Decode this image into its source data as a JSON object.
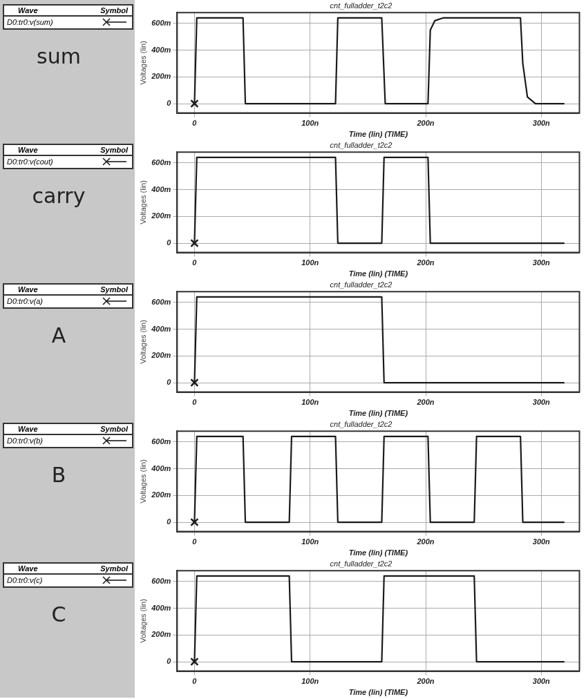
{
  "chart_data": [
    {
      "type": "line",
      "title": "cnt_fulladder_t2c2",
      "xlabel": "Time (lin) (TIME)",
      "ylabel": "Voltages (lin)",
      "legend_title": "Wave",
      "annotations": [
        "Symbol",
        "sum"
      ],
      "legend": "left",
      "grid": true,
      "line_style": "solid",
      "xlim": [
        -15,
        333
      ],
      "xticks": [
        {
          "value": 0,
          "label": "0"
        },
        {
          "value": 100,
          "label": "100n"
        },
        {
          "value": 200,
          "label": "200n"
        },
        {
          "value": 300,
          "label": "300n"
        }
      ],
      "ylim": [
        -70,
        680
      ],
      "yticks": [
        {
          "value": 0,
          "label": "0"
        },
        {
          "value": 200,
          "label": "200m"
        },
        {
          "value": 400,
          "label": "400m"
        },
        {
          "value": 600,
          "label": "600m"
        }
      ],
      "series": [
        {
          "name": "D0:tr0:v(sum)",
          "color": "#1a1a1a",
          "marker": "none",
          "x": [
            0,
            2,
            42,
            44,
            122,
            124,
            162,
            165,
            202,
            204,
            208,
            215,
            282,
            284,
            288,
            295,
            320
          ],
          "values": [
            0,
            640,
            640,
            0,
            0,
            640,
            640,
            0,
            0,
            550,
            620,
            640,
            640,
            300,
            50,
            0,
            0
          ]
        },
        {
          "type": "scatter",
          "color": "#1a1a1a",
          "marker": "cross",
          "x": [
            0
          ],
          "values": [
            0
          ]
        }
      ]
    },
    {
      "type": "line",
      "title": "cnt_fulladder_t2c2",
      "xlabel": "Time (lin) (TIME)",
      "ylabel": "Voltages (lin)",
      "legend_title": "Wave",
      "annotations": [
        "Symbol",
        "carry"
      ],
      "legend": "left",
      "grid": true,
      "line_style": "solid",
      "xlim": [
        -15,
        333
      ],
      "xticks": [
        {
          "value": 0,
          "label": "0"
        },
        {
          "value": 100,
          "label": "100n"
        },
        {
          "value": 200,
          "label": "200n"
        },
        {
          "value": 300,
          "label": "300n"
        }
      ],
      "ylim": [
        -70,
        680
      ],
      "yticks": [
        {
          "value": 0,
          "label": "0"
        },
        {
          "value": 200,
          "label": "200m"
        },
        {
          "value": 400,
          "label": "400m"
        },
        {
          "value": 600,
          "label": "600m"
        }
      ],
      "series": [
        {
          "name": "D0:tr0:v(cout)",
          "color": "#1a1a1a",
          "marker": "none",
          "x": [
            0,
            2,
            122,
            124,
            162,
            164,
            202,
            204,
            320
          ],
          "values": [
            0,
            640,
            640,
            0,
            0,
            640,
            640,
            0,
            0
          ]
        },
        {
          "type": "scatter",
          "color": "#1a1a1a",
          "marker": "cross",
          "x": [
            0
          ],
          "values": [
            0
          ]
        }
      ]
    },
    {
      "type": "line",
      "title": "cnt_fulladder_t2c2",
      "xlabel": "Time (lin) (TIME)",
      "ylabel": "Voltages (lin)",
      "legend_title": "Wave",
      "annotations": [
        "Symbol",
        "A"
      ],
      "legend": "left",
      "grid": true,
      "line_style": "solid",
      "xlim": [
        -15,
        333
      ],
      "xticks": [
        {
          "value": 0,
          "label": "0"
        },
        {
          "value": 100,
          "label": "100n"
        },
        {
          "value": 200,
          "label": "200n"
        },
        {
          "value": 300,
          "label": "300n"
        }
      ],
      "ylim": [
        -70,
        680
      ],
      "yticks": [
        {
          "value": 0,
          "label": "0"
        },
        {
          "value": 200,
          "label": "200m"
        },
        {
          "value": 400,
          "label": "400m"
        },
        {
          "value": 600,
          "label": "600m"
        }
      ],
      "series": [
        {
          "name": "D0:tr0:v(a)",
          "color": "#1a1a1a",
          "marker": "none",
          "x": [
            0,
            2,
            162,
            164,
            320
          ],
          "values": [
            0,
            640,
            640,
            0,
            0
          ]
        },
        {
          "type": "scatter",
          "color": "#1a1a1a",
          "marker": "cross",
          "x": [
            0
          ],
          "values": [
            0
          ]
        }
      ]
    },
    {
      "type": "line",
      "title": "cnt_fulladder_t2c2",
      "xlabel": "Time (lin) (TIME)",
      "ylabel": "Voltages (lin)",
      "legend_title": "Wave",
      "annotations": [
        "Symbol",
        "B"
      ],
      "legend": "left",
      "grid": true,
      "line_style": "solid",
      "xlim": [
        -15,
        333
      ],
      "xticks": [
        {
          "value": 0,
          "label": "0"
        },
        {
          "value": 100,
          "label": "100n"
        },
        {
          "value": 200,
          "label": "200n"
        },
        {
          "value": 300,
          "label": "300n"
        }
      ],
      "ylim": [
        -70,
        680
      ],
      "yticks": [
        {
          "value": 0,
          "label": "0"
        },
        {
          "value": 200,
          "label": "200m"
        },
        {
          "value": 400,
          "label": "400m"
        },
        {
          "value": 600,
          "label": "600m"
        }
      ],
      "series": [
        {
          "name": "D0:tr0:v(b)",
          "color": "#1a1a1a",
          "marker": "none",
          "x": [
            0,
            2,
            42,
            44,
            82,
            84,
            122,
            124,
            162,
            164,
            202,
            204,
            242,
            244,
            282,
            284,
            320
          ],
          "values": [
            0,
            640,
            640,
            0,
            0,
            640,
            640,
            0,
            0,
            640,
            640,
            0,
            0,
            640,
            640,
            0,
            0
          ]
        },
        {
          "type": "scatter",
          "color": "#1a1a1a",
          "marker": "cross",
          "x": [
            0
          ],
          "values": [
            0
          ]
        }
      ]
    },
    {
      "type": "line",
      "title": "cnt_fulladder_t2c2",
      "xlabel": "Time (lin) (TIME)",
      "ylabel": "Voltages (lin)",
      "legend_title": "Wave",
      "annotations": [
        "Symbol",
        "C"
      ],
      "legend": "left",
      "grid": true,
      "line_style": "solid",
      "xlim": [
        -15,
        333
      ],
      "xticks": [
        {
          "value": 0,
          "label": "0"
        },
        {
          "value": 100,
          "label": "100n"
        },
        {
          "value": 200,
          "label": "200n"
        },
        {
          "value": 300,
          "label": "300n"
        }
      ],
      "ylim": [
        -70,
        680
      ],
      "yticks": [
        {
          "value": 0,
          "label": "0"
        },
        {
          "value": 200,
          "label": "200m"
        },
        {
          "value": 400,
          "label": "400m"
        },
        {
          "value": 600,
          "label": "600m"
        }
      ],
      "series": [
        {
          "name": "D0:tr0:v(c)",
          "color": "#1a1a1a",
          "marker": "none",
          "x": [
            0,
            2,
            82,
            84,
            162,
            164,
            242,
            244,
            320
          ],
          "values": [
            0,
            640,
            640,
            0,
            0,
            640,
            640,
            0,
            0
          ]
        },
        {
          "type": "scatter",
          "color": "#1a1a1a",
          "marker": "cross",
          "x": [
            0
          ],
          "values": [
            0
          ]
        }
      ]
    }
  ]
}
